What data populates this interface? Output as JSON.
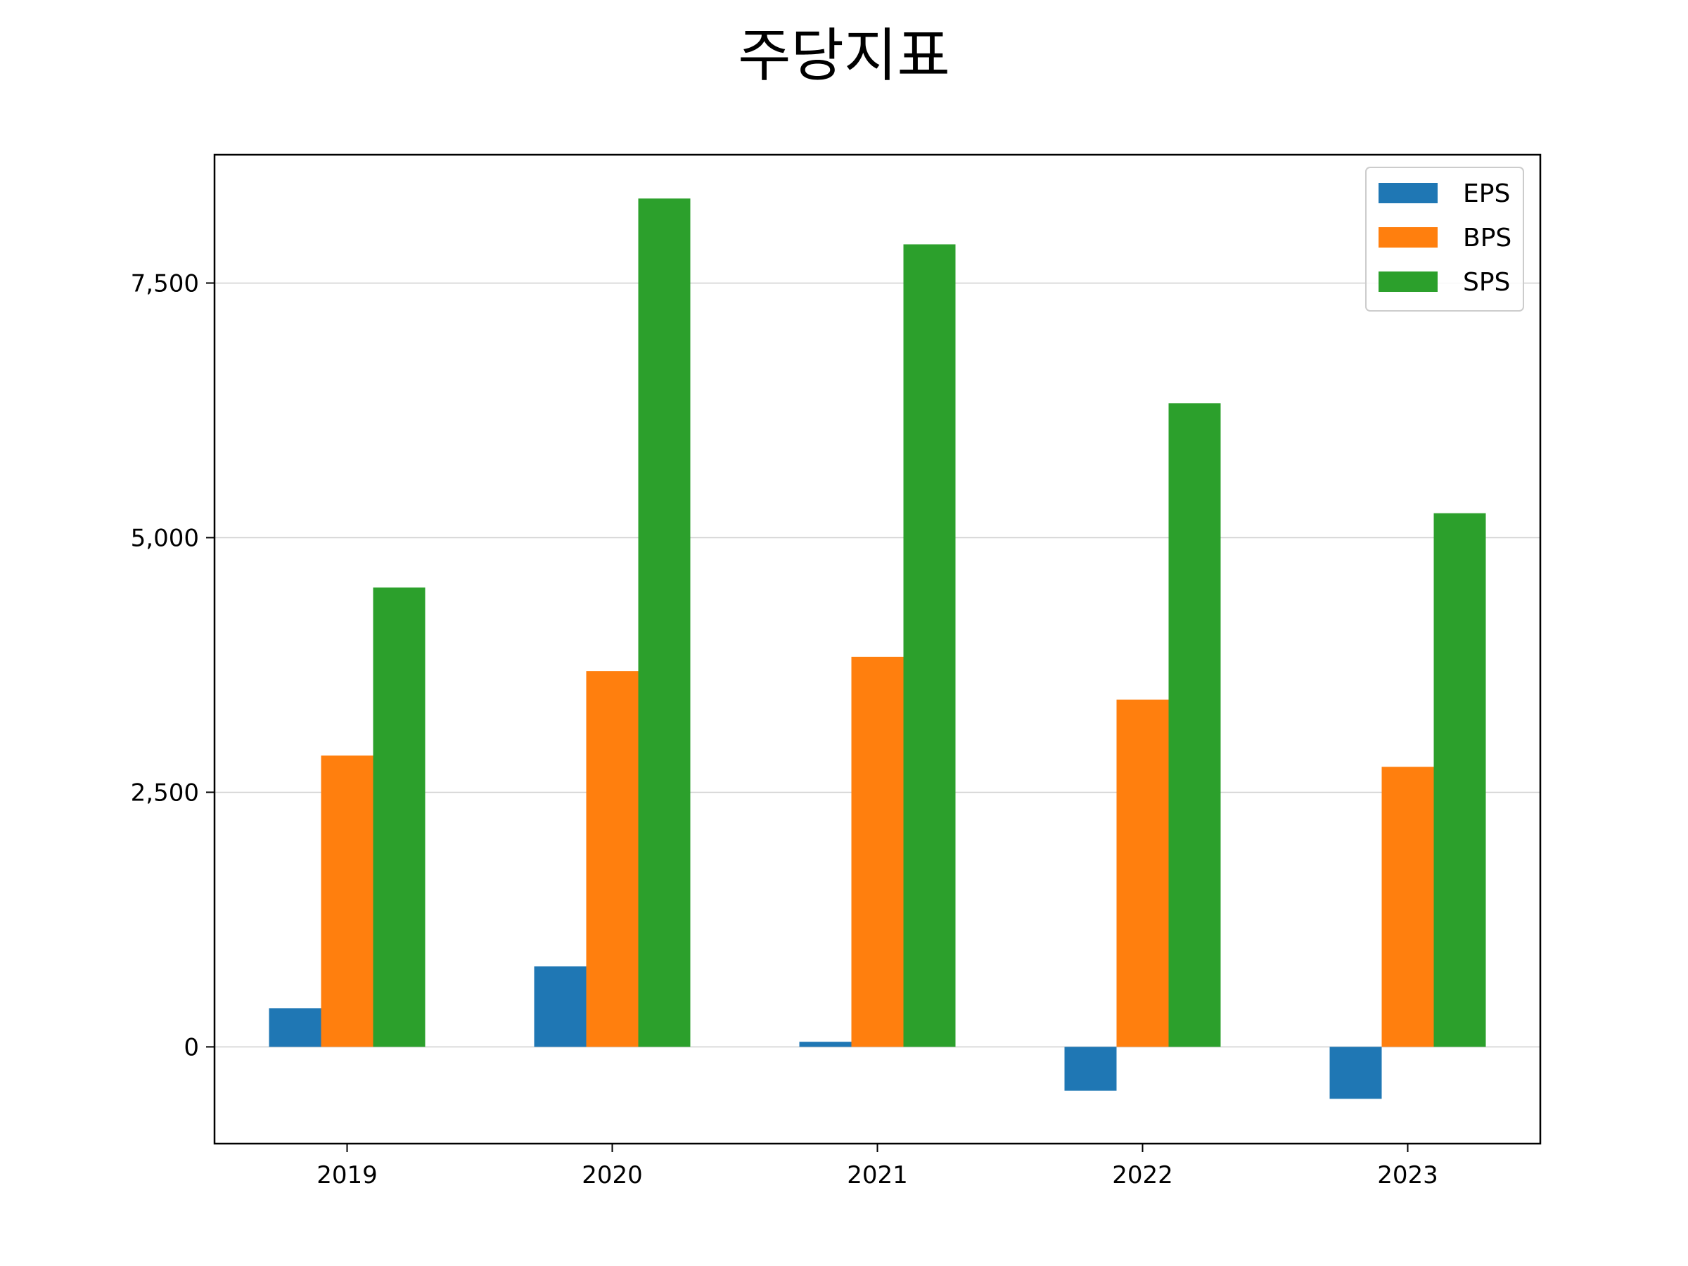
{
  "chart_data": {
    "type": "bar",
    "title": "주당지표",
    "xlabel": "",
    "ylabel": "",
    "categories": [
      "2019",
      "2020",
      "2021",
      "2022",
      "2023"
    ],
    "series": [
      {
        "name": "EPS",
        "color": "#1f77b4",
        "values": [
          380,
          790,
          50,
          -430,
          -510
        ]
      },
      {
        "name": "BPS",
        "color": "#ff7f0e",
        "values": [
          2860,
          3690,
          3830,
          3410,
          2750
        ]
      },
      {
        "name": "SPS",
        "color": "#2ca02c",
        "values": [
          4510,
          8330,
          7880,
          6320,
          5240
        ]
      }
    ],
    "ylim": [
      -950,
      8760
    ],
    "yticks": [
      0,
      2500,
      5000,
      7500
    ],
    "ytick_labels": [
      "0",
      "2,500",
      "5,000",
      "7,500"
    ],
    "grid": "horizontal",
    "legend_position": "top-right"
  }
}
